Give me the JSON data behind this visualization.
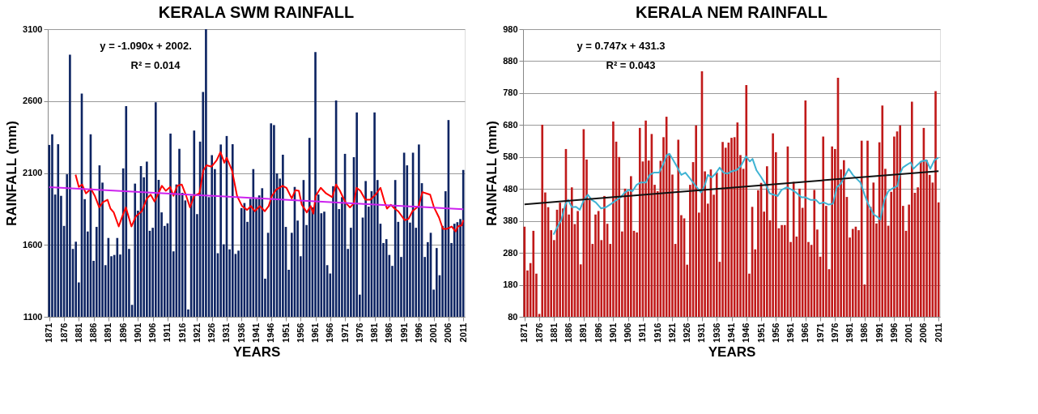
{
  "chart_data": [
    {
      "type": "bar",
      "title": "KERALA SWM RAINFALL",
      "xlabel": "YEARS",
      "ylabel": "RAINFALL (mm)",
      "grid": "y",
      "xlim": [
        1870.5,
        2011.5
      ],
      "xticks": [
        1871,
        1876,
        1881,
        1886,
        1891,
        1896,
        1901,
        1906,
        1911,
        1916,
        1921,
        1926,
        1931,
        1936,
        1941,
        1946,
        1951,
        1956,
        1961,
        1966,
        1971,
        1976,
        1981,
        1986,
        1991,
        1996,
        2001,
        2006,
        2011
      ],
      "ylim": [
        1100,
        3100
      ],
      "yticks": [
        1100,
        1600,
        2100,
        2600,
        3100
      ],
      "annotations": [
        "y = -1.090x + 2002.",
        "R² = 0.014"
      ],
      "x": [
        1871,
        1872,
        1873,
        1874,
        1875,
        1876,
        1877,
        1878,
        1879,
        1880,
        1881,
        1882,
        1883,
        1884,
        1885,
        1886,
        1887,
        1888,
        1889,
        1890,
        1891,
        1892,
        1893,
        1894,
        1895,
        1896,
        1897,
        1898,
        1899,
        1900,
        1901,
        1902,
        1903,
        1904,
        1905,
        1906,
        1907,
        1908,
        1909,
        1910,
        1911,
        1912,
        1913,
        1914,
        1915,
        1916,
        1917,
        1918,
        1919,
        1920,
        1921,
        1922,
        1923,
        1924,
        1925,
        1926,
        1927,
        1928,
        1929,
        1930,
        1931,
        1932,
        1933,
        1934,
        1935,
        1936,
        1937,
        1938,
        1939,
        1940,
        1941,
        1942,
        1943,
        1944,
        1945,
        1946,
        1947,
        1948,
        1949,
        1950,
        1951,
        1952,
        1953,
        1954,
        1955,
        1956,
        1957,
        1958,
        1959,
        1960,
        1961,
        1962,
        1963,
        1964,
        1965,
        1966,
        1967,
        1968,
        1969,
        1970,
        1971,
        1972,
        1973,
        1974,
        1975,
        1976,
        1977,
        1978,
        1979,
        1980,
        1981,
        1982,
        1983,
        1984,
        1985,
        1986,
        1987,
        1988,
        1989,
        1990,
        1991,
        1992,
        1993,
        1994,
        1995,
        1996,
        1997,
        1998,
        1999,
        2000,
        2001,
        2002,
        2003,
        2004,
        2005,
        2006,
        2007,
        2008,
        2009,
        2010,
        2011
      ],
      "series": [
        {
          "color": "#0d2462",
          "values": [
            2295,
            2369,
            1950,
            2300,
            1941,
            1732,
            2091,
            2923,
            1572,
            1622,
            1339,
            2652,
            1918,
            1693,
            2369,
            1489,
            1725,
            2153,
            2033,
            1459,
            1648,
            1521,
            1530,
            1648,
            1533,
            2132,
            2565,
            1572,
            1183,
            2026,
            1838,
            2148,
            2070,
            2179,
            1698,
            1719,
            2592,
            2052,
            1826,
            1732,
            1750,
            2374,
            1555,
            2020,
            2268,
            1962,
            1909,
            1151,
            1941,
            2395,
            1814,
            2318,
            2663,
            3100,
            1932,
            2224,
            2127,
            1542,
            2298,
            1604,
            2357,
            1569,
            2300,
            1537,
            1560,
            1856,
            1891,
            1760,
            1920,
            2127,
            1920,
            1944,
            1994,
            1365,
            1684,
            2445,
            2433,
            2097,
            2061,
            2227,
            1725,
            1427,
            1684,
            2003,
            1769,
            1521,
            2051,
            1738,
            2344,
            1861,
            2941,
            1950,
            1820,
            1831,
            1459,
            1401,
            2008,
            2604,
            1849,
            1932,
            2233,
            1572,
            1719,
            2210,
            2521,
            1254,
            1790,
            2044,
            1866,
            1973,
            2521,
            2051,
            1747,
            1613,
            1640,
            1530,
            1454,
            2051,
            1760,
            1516,
            2241,
            2153,
            1755,
            2241,
            1719,
            2298,
            2029,
            1516,
            1619,
            1684,
            1289,
            1578,
            1389,
            1732,
            1973,
            2468,
            1613,
            1747,
            1758,
            1780,
            2121
          ]
        },
        {
          "type": "line",
          "color": "#ff0000",
          "x": [
            1879.9,
            1881.0,
            1882.1,
            1883.4,
            1885.1,
            1886.4,
            1887.9,
            1889.1,
            1890.7,
            1891.7,
            1892.8,
            1894.5,
            1895.4,
            1896.9,
            1898.8,
            1900.3,
            1902.3,
            1904.0,
            1905.3,
            1906.6,
            1907.9,
            1909.1,
            1910.4,
            1911.9,
            1913.0,
            1914.3,
            1915.8,
            1917.3,
            1918.6,
            1920.0,
            1921.8,
            1923.1,
            1924.2,
            1925.9,
            1927.6,
            1928.9,
            1930.2,
            1931.0,
            1932.8,
            1934.5,
            1936.2,
            1937.9,
            1939.2,
            1940.5,
            1942.2,
            1943.9,
            1945.2,
            1946.3,
            1947.8,
            1949.9,
            1951.2,
            1953.0,
            1954.2,
            1955.4,
            1956.4,
            1958.1,
            1959.4,
            1960.3,
            1961.1,
            1962.8,
            1964.6,
            1966.7,
            1968.0,
            1969.3,
            1970.1,
            1971.4,
            1972.7,
            1974.0,
            1974.9,
            1976.2,
            1977.9,
            1979.6,
            1981.3,
            1983.0,
            1984.3,
            1985.2,
            1986.5,
            1987.8,
            1989.0,
            1991.2,
            1992.5,
            1993.8,
            1995.9,
            1997.2,
            1998.5,
            1999.8,
            2001.1,
            2002.8,
            2004.1,
            2005.4,
            2007.1,
            2008.4,
            2009.2,
            2010.5,
            2011.0
          ],
          "values": [
            2088,
            2003,
            2020,
            1958,
            1990,
            1941,
            1861,
            1896,
            1914,
            1852,
            1826,
            1728,
            1781,
            1861,
            1728,
            1799,
            1834,
            1923,
            1949,
            1902,
            1958,
            2011,
            1976,
            2003,
            1941,
            2011,
            2020,
            1941,
            1861,
            1941,
            1958,
            2118,
            2153,
            2144,
            2188,
            2245,
            2171,
            2206,
            2118,
            1941,
            1870,
            1843,
            1870,
            1834,
            1870,
            1834,
            1870,
            1941,
            1985,
            2011,
            1997,
            1923,
            1980,
            1976,
            1879,
            1826,
            1870,
            1817,
            1941,
            1997,
            1958,
            1932,
            2020,
            1976,
            1941,
            1888,
            1861,
            1888,
            1997,
            1976,
            1914,
            1914,
            1949,
            1997,
            1905,
            1852,
            1879,
            1852,
            1834,
            1772,
            1781,
            1834,
            1870,
            1967,
            1958,
            1949,
            1861,
            1790,
            1711,
            1711,
            1728,
            1693,
            1728,
            1737,
            1772
          ]
        },
        {
          "type": "line",
          "color": "#cc22ee",
          "x": [
            1871,
            2011
          ],
          "values": [
            2001,
            1848
          ]
        }
      ]
    },
    {
      "type": "bar",
      "title": "KERALA NEM RAINFALL",
      "xlabel": "YEARS",
      "ylabel": "RAINFALL (mm)",
      "grid": "y",
      "xlim": [
        1870.5,
        2011.5
      ],
      "xticks": [
        1871,
        1876,
        1881,
        1886,
        1891,
        1896,
        1901,
        1906,
        1911,
        1916,
        1921,
        1926,
        1931,
        1936,
        1941,
        1946,
        1951,
        1956,
        1961,
        1966,
        1971,
        1976,
        1981,
        1986,
        1991,
        1996,
        2001,
        2006,
        2011
      ],
      "ylim": [
        80,
        980
      ],
      "yticks": [
        80,
        180,
        280,
        380,
        480,
        580,
        680,
        780,
        880,
        980
      ],
      "annotations": [
        "y = 0.747x + 431.3",
        "R² = 0.043"
      ],
      "x": [
        1871,
        1872,
        1873,
        1874,
        1875,
        1876,
        1877,
        1878,
        1879,
        1880,
        1881,
        1882,
        1883,
        1884,
        1885,
        1886,
        1887,
        1888,
        1889,
        1890,
        1891,
        1892,
        1893,
        1894,
        1895,
        1896,
        1897,
        1898,
        1899,
        1900,
        1901,
        1902,
        1903,
        1904,
        1905,
        1906,
        1907,
        1908,
        1909,
        1910,
        1911,
        1912,
        1913,
        1914,
        1915,
        1916,
        1917,
        1918,
        1919,
        1920,
        1921,
        1922,
        1923,
        1924,
        1925,
        1926,
        1927,
        1928,
        1929,
        1930,
        1931,
        1932,
        1933,
        1934,
        1935,
        1936,
        1937,
        1938,
        1939,
        1940,
        1941,
        1942,
        1943,
        1944,
        1945,
        1946,
        1947,
        1948,
        1949,
        1950,
        1951,
        1952,
        1953,
        1954,
        1955,
        1956,
        1957,
        1958,
        1959,
        1960,
        1961,
        1962,
        1963,
        1964,
        1965,
        1966,
        1967,
        1968,
        1969,
        1970,
        1971,
        1972,
        1973,
        1974,
        1975,
        1976,
        1977,
        1978,
        1979,
        1980,
        1981,
        1982,
        1983,
        1984,
        1985,
        1986,
        1987,
        1988,
        1989,
        1990,
        1991,
        1992,
        1993,
        1994,
        1995,
        1996,
        1997,
        1998,
        1999,
        2000,
        2001,
        2002,
        2003,
        2004,
        2005,
        2006,
        2007,
        2008,
        2009,
        2010,
        2011
      ],
      "series": [
        {
          "color": "#c01a1a",
          "values": [
            362,
            225,
            248,
            349,
            215,
            89,
            681,
            469,
            423,
            351,
            320,
            415,
            437,
            419,
            605,
            400,
            485,
            370,
            411,
            244,
            667,
            572,
            446,
            308,
            400,
            411,
            320,
            458,
            371,
            308,
            691,
            628,
            580,
            347,
            481,
            472,
            520,
            349,
            344,
            671,
            566,
            694,
            569,
            652,
            493,
            473,
            568,
            642,
            706,
            586,
            525,
            308,
            634,
            398,
            388,
            243,
            493,
            564,
            679,
            406,
            848,
            535,
            434,
            541,
            462,
            531,
            252,
            627,
            609,
            625,
            640,
            642,
            688,
            586,
            543,
            805,
            215,
            424,
            291,
            476,
            499,
            409,
            551,
            382,
            654,
            595,
            357,
            367,
            367,
            613,
            314,
            502,
            331,
            481,
            421,
            757,
            314,
            305,
            477,
            353,
            268,
            644,
            427,
            229,
            613,
            605,
            828,
            541,
            570,
            455,
            328,
            355,
            362,
            351,
            631,
            181,
            631,
            424,
            500,
            372,
            626,
            741,
            543,
            365,
            471,
            644,
            660,
            679,
            427,
            349,
            431,
            753,
            468,
            485,
            566,
            671,
            570,
            524,
            500,
            786,
            438
          ]
        },
        {
          "type": "line",
          "color": "#3fb3d3",
          "x": [
            1880.8,
            1882.1,
            1883.5,
            1884.8,
            1885.7,
            1887.0,
            1888.4,
            1889.7,
            1891.1,
            1892.4,
            1893.7,
            1895.1,
            1896.9,
            1898.6,
            1900.4,
            1902.2,
            1903.5,
            1904.9,
            1906.2,
            1907.5,
            1908.9,
            1910.2,
            1912.0,
            1913.3,
            1914.7,
            1916.5,
            1917.8,
            1919.1,
            1920.0,
            1921.3,
            1922.7,
            1924.0,
            1925.4,
            1926.7,
            1928.9,
            1930.7,
            1932.0,
            1933.0,
            1934.3,
            1935.6,
            1937.0,
            1938.3,
            1939.6,
            1941.0,
            1942.7,
            1944.1,
            1945.9,
            1947.2,
            1948.1,
            1949.4,
            1950.8,
            1952.6,
            1953.9,
            1955.2,
            1956.6,
            1957.9,
            1959.7,
            1961.5,
            1962.8,
            1964.6,
            1965.9,
            1967.7,
            1969.5,
            1970.8,
            1972.2,
            1973.9,
            1975.3,
            1976.6,
            1978.0,
            1979.3,
            1980.6,
            1982.0,
            1983.3,
            1984.6,
            1986.0,
            1987.3,
            1989.1,
            1990.4,
            1991.3,
            1992.7,
            1994.0,
            1995.3,
            1997.1,
            1998.0,
            1998.9,
            2000.2,
            2001.6,
            2002.5,
            2003.8,
            2005.1,
            2006.9,
            2008.2,
            2009.6,
            2010.9
          ],
          "values": [
            337,
            361,
            384,
            431,
            446,
            423,
            424,
            415,
            446,
            462,
            446,
            438,
            419,
            423,
            434,
            446,
            454,
            469,
            477,
            473,
            493,
            500,
            500,
            524,
            531,
            531,
            555,
            586,
            590,
            570,
            547,
            524,
            531,
            516,
            489,
            469,
            493,
            524,
            516,
            528,
            547,
            531,
            528,
            535,
            539,
            551,
            582,
            566,
            574,
            539,
            520,
            493,
            466,
            462,
            458,
            477,
            485,
            477,
            469,
            454,
            454,
            446,
            446,
            434,
            438,
            431,
            434,
            485,
            497,
            520,
            543,
            524,
            512,
            500,
            462,
            431,
            400,
            392,
            384,
            446,
            473,
            481,
            489,
            528,
            547,
            555,
            563,
            543,
            555,
            566,
            570,
            543,
            570,
            578
          ]
        },
        {
          "type": "line",
          "color": "#111111",
          "x": [
            1871,
            2011
          ],
          "values": [
            432,
            536
          ]
        }
      ]
    }
  ]
}
